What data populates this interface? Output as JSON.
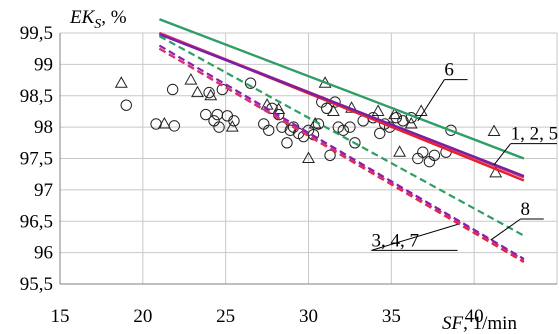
{
  "chart_data": {
    "type": "scatter",
    "title": "",
    "xlabel_main": "SF",
    "xlabel_unit": ", 1/min",
    "ylabel_main": "EK",
    "ylabel_sub": "S",
    "ylabel_unit": ", %",
    "xlim": [
      15,
      45
    ],
    "ylim": [
      95.5,
      99.5
    ],
    "xticks": [
      15,
      20,
      25,
      30,
      35,
      40
    ],
    "yticks": [
      95.5,
      96,
      96.5,
      97,
      97.5,
      98,
      98.5,
      99,
      99.5
    ],
    "ytick_labels": [
      "95,5",
      "96",
      "96,5",
      "97",
      "97,5",
      "98",
      "98,5",
      "99",
      "99,5"
    ],
    "grid": true,
    "lines": [
      {
        "label": "1",
        "color": "#e8202a",
        "dash": "solid",
        "x": [
          21,
          43
        ],
        "y": [
          99.5,
          97.15
        ]
      },
      {
        "label": "2",
        "color": "#d4337a",
        "dash": "solid",
        "x": [
          21,
          43
        ],
        "y": [
          99.5,
          97.2
        ]
      },
      {
        "label": "5",
        "color": "#7a1fa2",
        "dash": "solid",
        "x": [
          21,
          43
        ],
        "y": [
          99.48,
          97.22
        ]
      },
      {
        "label": "6",
        "color": "#2e9e64",
        "dash": "solid",
        "x": [
          21,
          43
        ],
        "y": [
          99.72,
          97.5
        ]
      },
      {
        "label": "3",
        "color": "#e8202a",
        "dash": "dashed",
        "x": [
          21,
          43
        ],
        "y": [
          99.25,
          95.85
        ]
      },
      {
        "label": "4",
        "color": "#d4337a",
        "dash": "dashed",
        "x": [
          21,
          43
        ],
        "y": [
          99.25,
          95.88
        ]
      },
      {
        "label": "7",
        "color": "#8b1fb0",
        "dash": "dashed",
        "x": [
          21,
          43
        ],
        "y": [
          99.3,
          95.9
        ]
      },
      {
        "label": "8",
        "color": "#2e9e64",
        "dash": "dashed",
        "x": [
          21,
          43
        ],
        "y": [
          99.45,
          96.27
        ]
      }
    ],
    "circles": [
      [
        19,
        98.35
      ],
      [
        20.8,
        98.05
      ],
      [
        21.8,
        98.6
      ],
      [
        21.9,
        98.02
      ],
      [
        23.8,
        98.2
      ],
      [
        24,
        98.55
      ],
      [
        24.3,
        98.1
      ],
      [
        24.5,
        98.2
      ],
      [
        24.6,
        98
      ],
      [
        24.8,
        98.6
      ],
      [
        25.1,
        98.18
      ],
      [
        25.5,
        98.1
      ],
      [
        26.5,
        98.7
      ],
      [
        27.3,
        98.05
      ],
      [
        27.6,
        97.95
      ],
      [
        27.8,
        98.3
      ],
      [
        28.2,
        98.2
      ],
      [
        28.4,
        98.0
      ],
      [
        28.7,
        97.75
      ],
      [
        28.9,
        97.95
      ],
      [
        29.1,
        98.0
      ],
      [
        29.4,
        97.9
      ],
      [
        29.7,
        97.85
      ],
      [
        30.0,
        97.95
      ],
      [
        30.3,
        97.88
      ],
      [
        30.6,
        98.05
      ],
      [
        30.8,
        98.4
      ],
      [
        31.1,
        98.3
      ],
      [
        31.3,
        97.55
      ],
      [
        31.6,
        98.4
      ],
      [
        31.8,
        98.0
      ],
      [
        32.1,
        97.95
      ],
      [
        32.5,
        98.0
      ],
      [
        32.8,
        97.75
      ],
      [
        33.3,
        98.1
      ],
      [
        33.9,
        98.15
      ],
      [
        34.3,
        97.9
      ],
      [
        34.6,
        98.05
      ],
      [
        34.9,
        98.0
      ],
      [
        35.3,
        98.15
      ],
      [
        35.7,
        98.1
      ],
      [
        36.2,
        98.15
      ],
      [
        36.6,
        97.5
      ],
      [
        36.9,
        97.6
      ],
      [
        37.3,
        97.45
      ],
      [
        37.6,
        97.55
      ],
      [
        38.3,
        97.6
      ],
      [
        38.6,
        97.95
      ]
    ],
    "triangles": [
      [
        18.7,
        98.7
      ],
      [
        21.3,
        98.05
      ],
      [
        22.9,
        98.75
      ],
      [
        23.3,
        98.55
      ],
      [
        24.1,
        98.5
      ],
      [
        25.4,
        98.0
      ],
      [
        27.5,
        98.35
      ],
      [
        28.2,
        98.28
      ],
      [
        30.0,
        97.5
      ],
      [
        30.4,
        98.05
      ],
      [
        31.0,
        98.7
      ],
      [
        31.5,
        98.25
      ],
      [
        32.6,
        98.3
      ],
      [
        34.2,
        98.25
      ],
      [
        35.2,
        98.2
      ],
      [
        35.5,
        97.6
      ],
      [
        36.2,
        98.05
      ],
      [
        36.8,
        98.25
      ],
      [
        41.2,
        97.93
      ],
      [
        41.3,
        97.27
      ]
    ],
    "annotations": [
      {
        "text": "6",
        "text_x": 38.2,
        "text_y": 98.82,
        "target_x": 36.6,
        "target_y": 98.1,
        "underline_to": 39.6
      },
      {
        "text": "1, 2, 5",
        "text_x": 42.2,
        "text_y": 97.8,
        "target_x": 41.2,
        "target_y": 97.4,
        "underline_to": 45.0
      },
      {
        "text": "8",
        "text_x": 42.8,
        "text_y": 96.6,
        "target_x": 41.0,
        "target_y": 96.2,
        "underline_to": 44.2
      },
      {
        "text": "3, 4, 7",
        "text_x": 33.8,
        "text_y": 96.1,
        "target_x": 39.0,
        "target_y": 96.45,
        "underline_to": 39.0
      }
    ]
  }
}
